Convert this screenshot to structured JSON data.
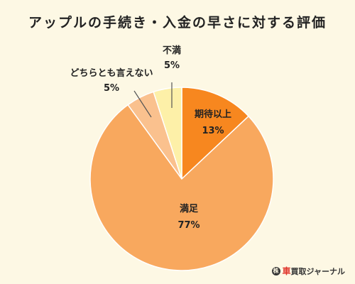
{
  "chart_data": {
    "type": "pie",
    "title": "アップルの手続き・入金の早さに対する評価",
    "start_angle_deg": 0,
    "direction": "clockwise",
    "slices": [
      {
        "label": "期待以上",
        "value": 13,
        "value_label": "13%",
        "color": "#f7871f"
      },
      {
        "label": "満足",
        "value": 77,
        "value_label": "77%",
        "color": "#f8a85e"
      },
      {
        "label": "どちらとも言えない",
        "value": 5,
        "value_label": "5%",
        "color": "#fac18e"
      },
      {
        "label": "不満",
        "value": 5,
        "value_label": "5%",
        "color": "#fdf0a8"
      }
    ]
  },
  "brand": {
    "icon": "株",
    "accent": "車",
    "text": "買取ジャーナル"
  }
}
